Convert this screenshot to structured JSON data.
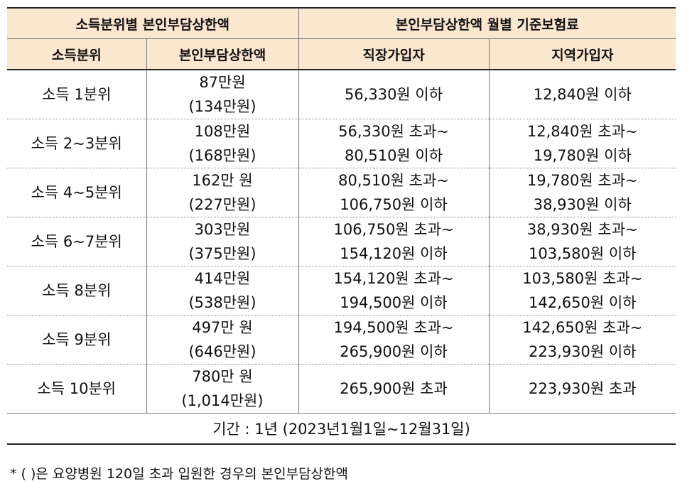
{
  "header": {
    "group_left": "소득분위별 본인부담상한액",
    "group_right": "본인부담상한액 월별 기준보험료",
    "col_income": "소득분위",
    "col_cap": "본인부담상한액",
    "col_employee": "직장가입자",
    "col_regional": "지역가입자"
  },
  "rows": [
    {
      "income": "소득 1분위",
      "cap": [
        "87만원",
        "(134만원)"
      ],
      "employee": [
        "56,330원 이하"
      ],
      "regional": [
        "12,840원 이하"
      ]
    },
    {
      "income": "소득 2~3분위",
      "cap": [
        "108만원",
        "(168만원)"
      ],
      "employee": [
        "56,330원 초과~",
        "80,510원 이하"
      ],
      "regional": [
        "12,840원 초과~",
        "19,780원 이하"
      ]
    },
    {
      "income": "소득 4~5분위",
      "cap": [
        "162만 원",
        "(227만원)"
      ],
      "employee": [
        "80,510원 초과~",
        "106,750원 이하"
      ],
      "regional": [
        "19,780원 초과~",
        "38,930원 이하"
      ]
    },
    {
      "income": "소득 6~7분위",
      "cap": [
        "303만원",
        "(375만원)"
      ],
      "employee": [
        "106,750원 초과~",
        "154,120원 이하"
      ],
      "regional": [
        "38,930원 초과~",
        "103,580원 이하"
      ]
    },
    {
      "income": "소득 8분위",
      "cap": [
        "414만원",
        "(538만원)"
      ],
      "employee": [
        "154,120원 초과~",
        "194,500원 이하"
      ],
      "regional": [
        "103,580원 초과~",
        "142,650원 이하"
      ]
    },
    {
      "income": "소득 9분위",
      "cap": [
        "497만 원",
        "(646만원)"
      ],
      "employee": [
        "194,500원 초과~",
        "265,900원 이하"
      ],
      "regional": [
        "142,650원 초과~",
        "223,930원 이하"
      ]
    },
    {
      "income": "소득 10분위",
      "cap": [
        "780만 원",
        "(1,014만원)"
      ],
      "employee": [
        "265,900원 초과"
      ],
      "regional": [
        "223,930원 초과"
      ]
    }
  ],
  "footer": {
    "period": "기간 : 1년 (2023년1월1일~12월31일)"
  },
  "note": "* ( )은 요양병원 120일 초과 입원한 경우의 본인부담상한액"
}
